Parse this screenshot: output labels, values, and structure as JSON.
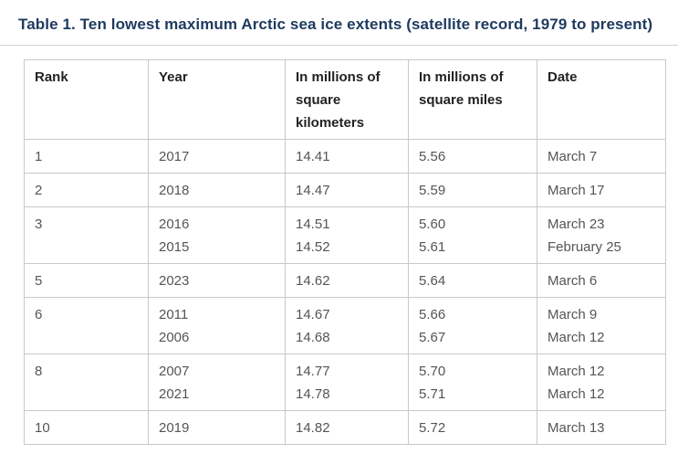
{
  "page_title": "Table 1. Ten lowest maximum Arctic sea ice extents (satellite record, 1979 to present)",
  "colors": {
    "title_text": "#1e3a5f",
    "header_text": "#222222",
    "body_text": "#555555",
    "table_border": "#c9c9c9",
    "rule": "#ccd2d6",
    "background": "#ffffff"
  },
  "table": {
    "columns": [
      {
        "label": "Rank",
        "lines": [
          "Rank"
        ]
      },
      {
        "label": "Year",
        "lines": [
          "Year"
        ]
      },
      {
        "label": "In millions of square kilometers",
        "lines": [
          "In millions of",
          "square",
          "kilometers"
        ]
      },
      {
        "label": "In millions of square miles",
        "lines": [
          "In millions of",
          "square miles"
        ]
      },
      {
        "label": "Date",
        "lines": [
          "Date"
        ]
      }
    ],
    "rows": [
      {
        "rank": "1",
        "years": [
          "2017"
        ],
        "sq_km": [
          "14.41"
        ],
        "sq_miles": [
          "5.56"
        ],
        "dates": [
          "March 7"
        ]
      },
      {
        "rank": "2",
        "years": [
          "2018"
        ],
        "sq_km": [
          "14.47"
        ],
        "sq_miles": [
          "5.59"
        ],
        "dates": [
          "March 17"
        ]
      },
      {
        "rank": "3",
        "years": [
          "2016",
          "2015"
        ],
        "sq_km": [
          "14.51",
          "14.52"
        ],
        "sq_miles": [
          "5.60",
          "5.61"
        ],
        "dates": [
          "March 23",
          "February 25"
        ]
      },
      {
        "rank": "5",
        "years": [
          "2023"
        ],
        "sq_km": [
          "14.62"
        ],
        "sq_miles": [
          "5.64"
        ],
        "dates": [
          "March 6"
        ]
      },
      {
        "rank": "6",
        "years": [
          "2011",
          "2006"
        ],
        "sq_km": [
          "14.67",
          "14.68"
        ],
        "sq_miles": [
          "5.66",
          "5.67"
        ],
        "dates": [
          "March 9",
          "March 12"
        ]
      },
      {
        "rank": "8",
        "years": [
          "2007",
          "2021"
        ],
        "sq_km": [
          "14.77",
          "14.78"
        ],
        "sq_miles": [
          "5.70",
          "5.71"
        ],
        "dates": [
          "March 12",
          "March 12"
        ]
      },
      {
        "rank": "10",
        "years": [
          "2019"
        ],
        "sq_km": [
          "14.82"
        ],
        "sq_miles": [
          "5.72"
        ],
        "dates": [
          "March 13"
        ]
      }
    ]
  },
  "chart_data": {
    "type": "table",
    "title": "Table 1. Ten lowest maximum Arctic sea ice extents (satellite record, 1979 to present)",
    "columns": [
      "Rank",
      "Year",
      "In millions of square kilometers",
      "In millions of square miles",
      "Date"
    ],
    "rows": [
      [
        "1",
        "2017",
        "14.41",
        "5.56",
        "March 7"
      ],
      [
        "2",
        "2018",
        "14.47",
        "5.59",
        "March 17"
      ],
      [
        "3",
        "2016",
        "14.51",
        "5.60",
        "March 23"
      ],
      [
        "",
        "2015",
        "14.52",
        "5.61",
        "February 25"
      ],
      [
        "5",
        "2023",
        "14.62",
        "5.64",
        "March 6"
      ],
      [
        "6",
        "2011",
        "14.67",
        "5.66",
        "March 9"
      ],
      [
        "",
        "2006",
        "14.68",
        "5.67",
        "March 12"
      ],
      [
        "8",
        "2007",
        "14.77",
        "5.70",
        "March 12"
      ],
      [
        "",
        "2021",
        "14.78",
        "5.71",
        "March 12"
      ],
      [
        "10",
        "2019",
        "14.82",
        "5.72",
        "March 13"
      ]
    ]
  }
}
